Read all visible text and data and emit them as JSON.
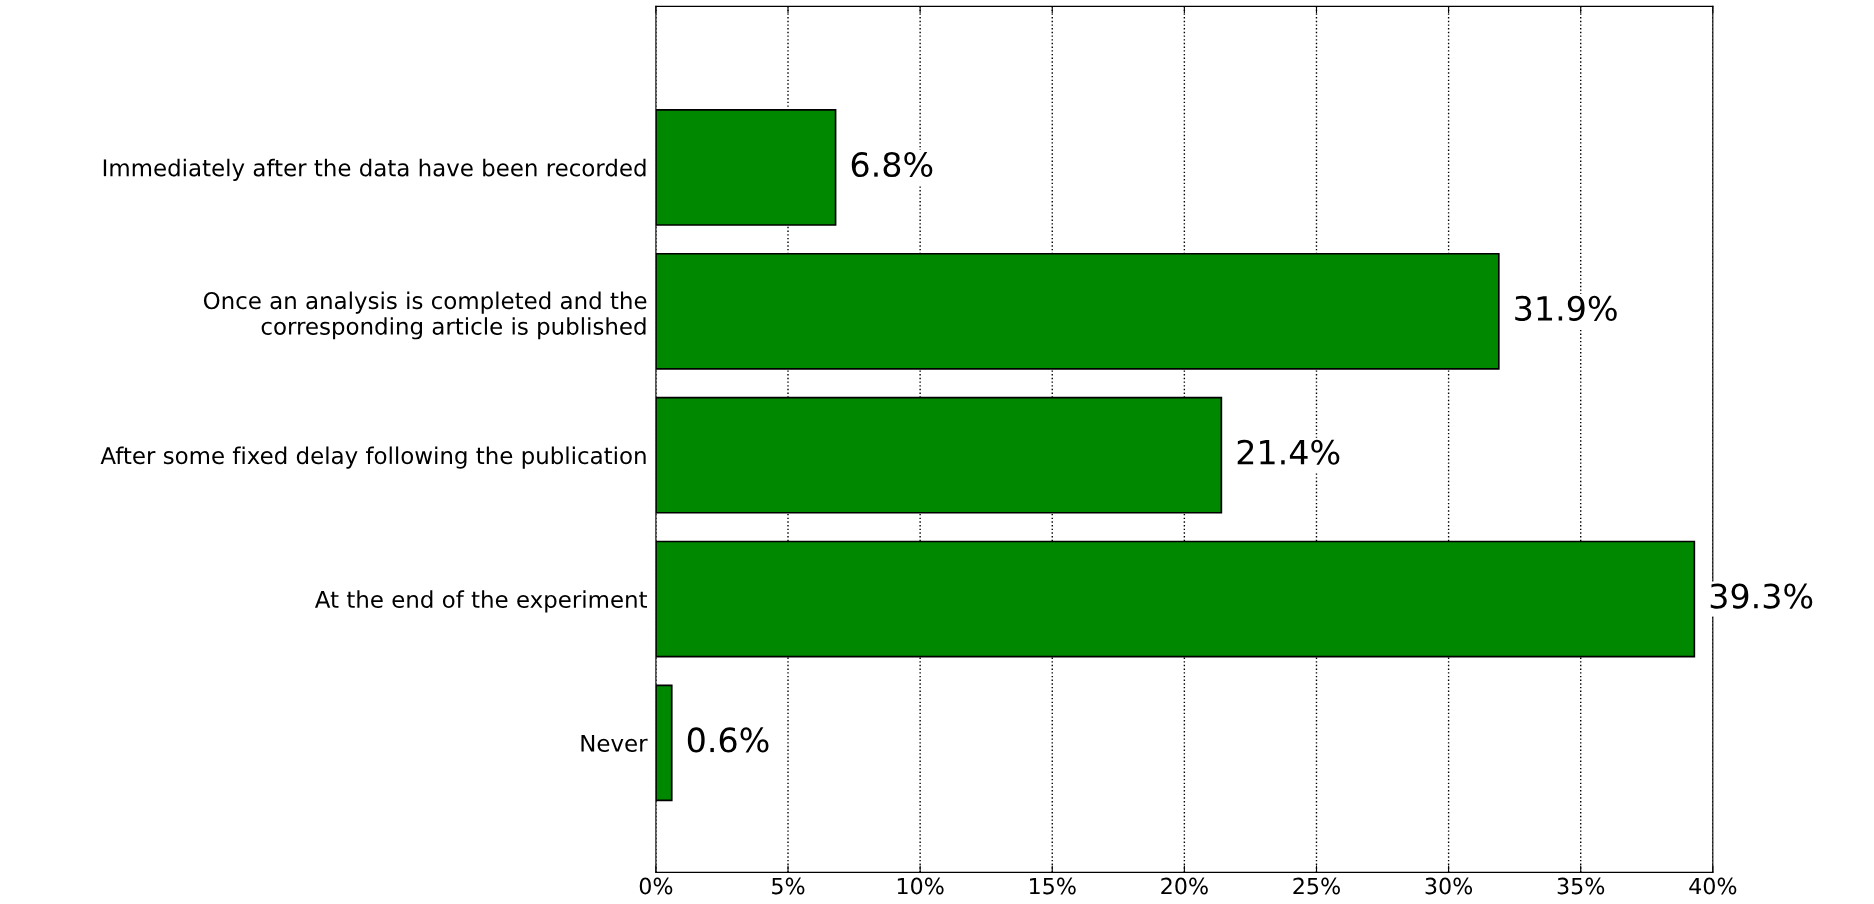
{
  "chart_data": {
    "type": "bar",
    "orientation": "horizontal",
    "categories": [
      "Immediately after the data have been recorded",
      "Once an analysis is completed and the\ncorresponding article is published",
      "After some fixed delay following the publication",
      "At the end of the experiment",
      "Never"
    ],
    "values": [
      6.8,
      31.9,
      21.4,
      39.3,
      0.6
    ],
    "value_labels": [
      "6.8%",
      "31.9%",
      "21.4%",
      "39.3%",
      "0.6%"
    ],
    "color": "#008800",
    "xlim": [
      0,
      40
    ],
    "xticks": [
      {
        "value": 0,
        "label": "0%"
      },
      {
        "value": 5,
        "label": "5%"
      },
      {
        "value": 10,
        "label": "10%"
      },
      {
        "value": 15,
        "label": "15%"
      },
      {
        "value": 20,
        "label": "20%"
      },
      {
        "value": 25,
        "label": "25%"
      },
      {
        "value": 30,
        "label": "30%"
      },
      {
        "value": 35,
        "label": "35%"
      },
      {
        "value": 40,
        "label": "40%"
      }
    ],
    "grid": "x",
    "legend": false
  }
}
